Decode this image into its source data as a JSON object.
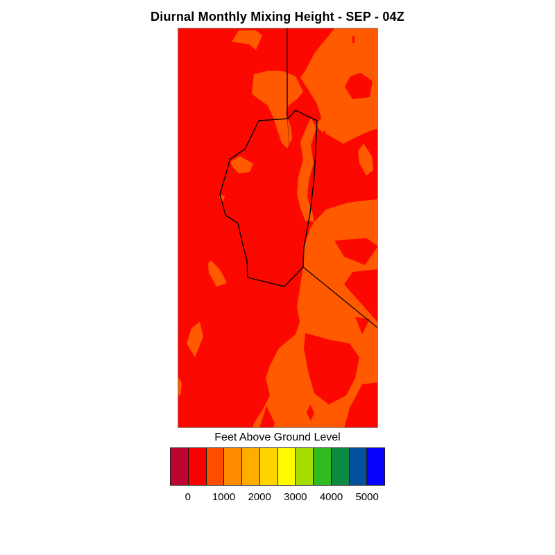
{
  "title": "Diurnal Monthly Mixing Height - SEP - 04Z",
  "colorbar": {
    "title": "Feet Above Ground Level",
    "tick_labels": [
      "0",
      "1000",
      "2000",
      "3000",
      "4000",
      "5000"
    ],
    "colors": [
      "#BE0532",
      "#F90000",
      "#FF4D00",
      "#FF8A00",
      "#FFAD00",
      "#FFD400",
      "#FFFB00",
      "#A6DC00",
      "#30BC20",
      "#0C8A44",
      "#05509E",
      "#0802FA"
    ]
  },
  "map": {
    "low_color": "#FB0900",
    "high_color": "#FF5A00",
    "boundary_color": "#000000",
    "thin_line_color": "#993300",
    "frame_color": "#8a8a8a"
  },
  "chart_data": {
    "type": "heatmap",
    "title": "Diurnal Monthly Mixing Height - SEP - 04Z",
    "colorbar_title": "Feet Above Ground Level",
    "tick_labels": [
      0,
      1000,
      2000,
      3000,
      4000,
      5000
    ],
    "contour_levels_ft": [
      -500,
      0,
      500,
      1000,
      1500,
      2000,
      2500,
      3000,
      3500,
      4000,
      4500,
      5000,
      5500
    ],
    "palette": [
      "#BE0532",
      "#F90000",
      "#FF4D00",
      "#FF8A00",
      "#FFAD00",
      "#FFD400",
      "#FFFB00",
      "#A6DC00",
      "#30BC20",
      "#0C8A44",
      "#05509E",
      "#0802FA"
    ],
    "map_fill_values_ft": {
      "red_regions": "0-500",
      "orange_regions": "500-1000"
    },
    "legend_position": "bottom"
  }
}
